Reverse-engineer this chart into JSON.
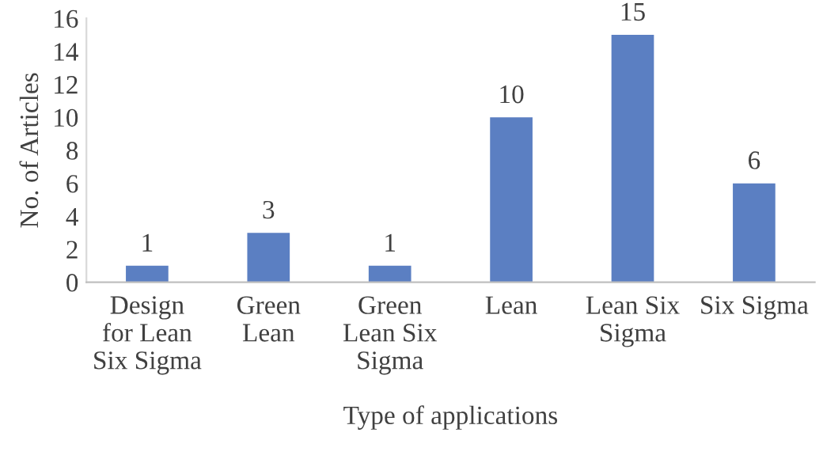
{
  "chart_data": {
    "type": "bar",
    "xlabel": "Type of applications",
    "ylabel": "No. of Articles",
    "categories": [
      "Design\nfor Lean\nSix Sigma",
      "Green\nLean",
      "Green\nLean Six\nSigma",
      "Lean",
      "Lean Six\nSigma",
      "Six Sigma"
    ],
    "values": [
      1,
      3,
      1,
      10,
      15,
      6
    ],
    "color": "#5b7fc2",
    "ylim": [
      0,
      16
    ],
    "yticks": [
      0,
      2,
      4,
      6,
      8,
      10,
      12,
      14,
      16
    ],
    "grid": false,
    "data_labels": true
  }
}
